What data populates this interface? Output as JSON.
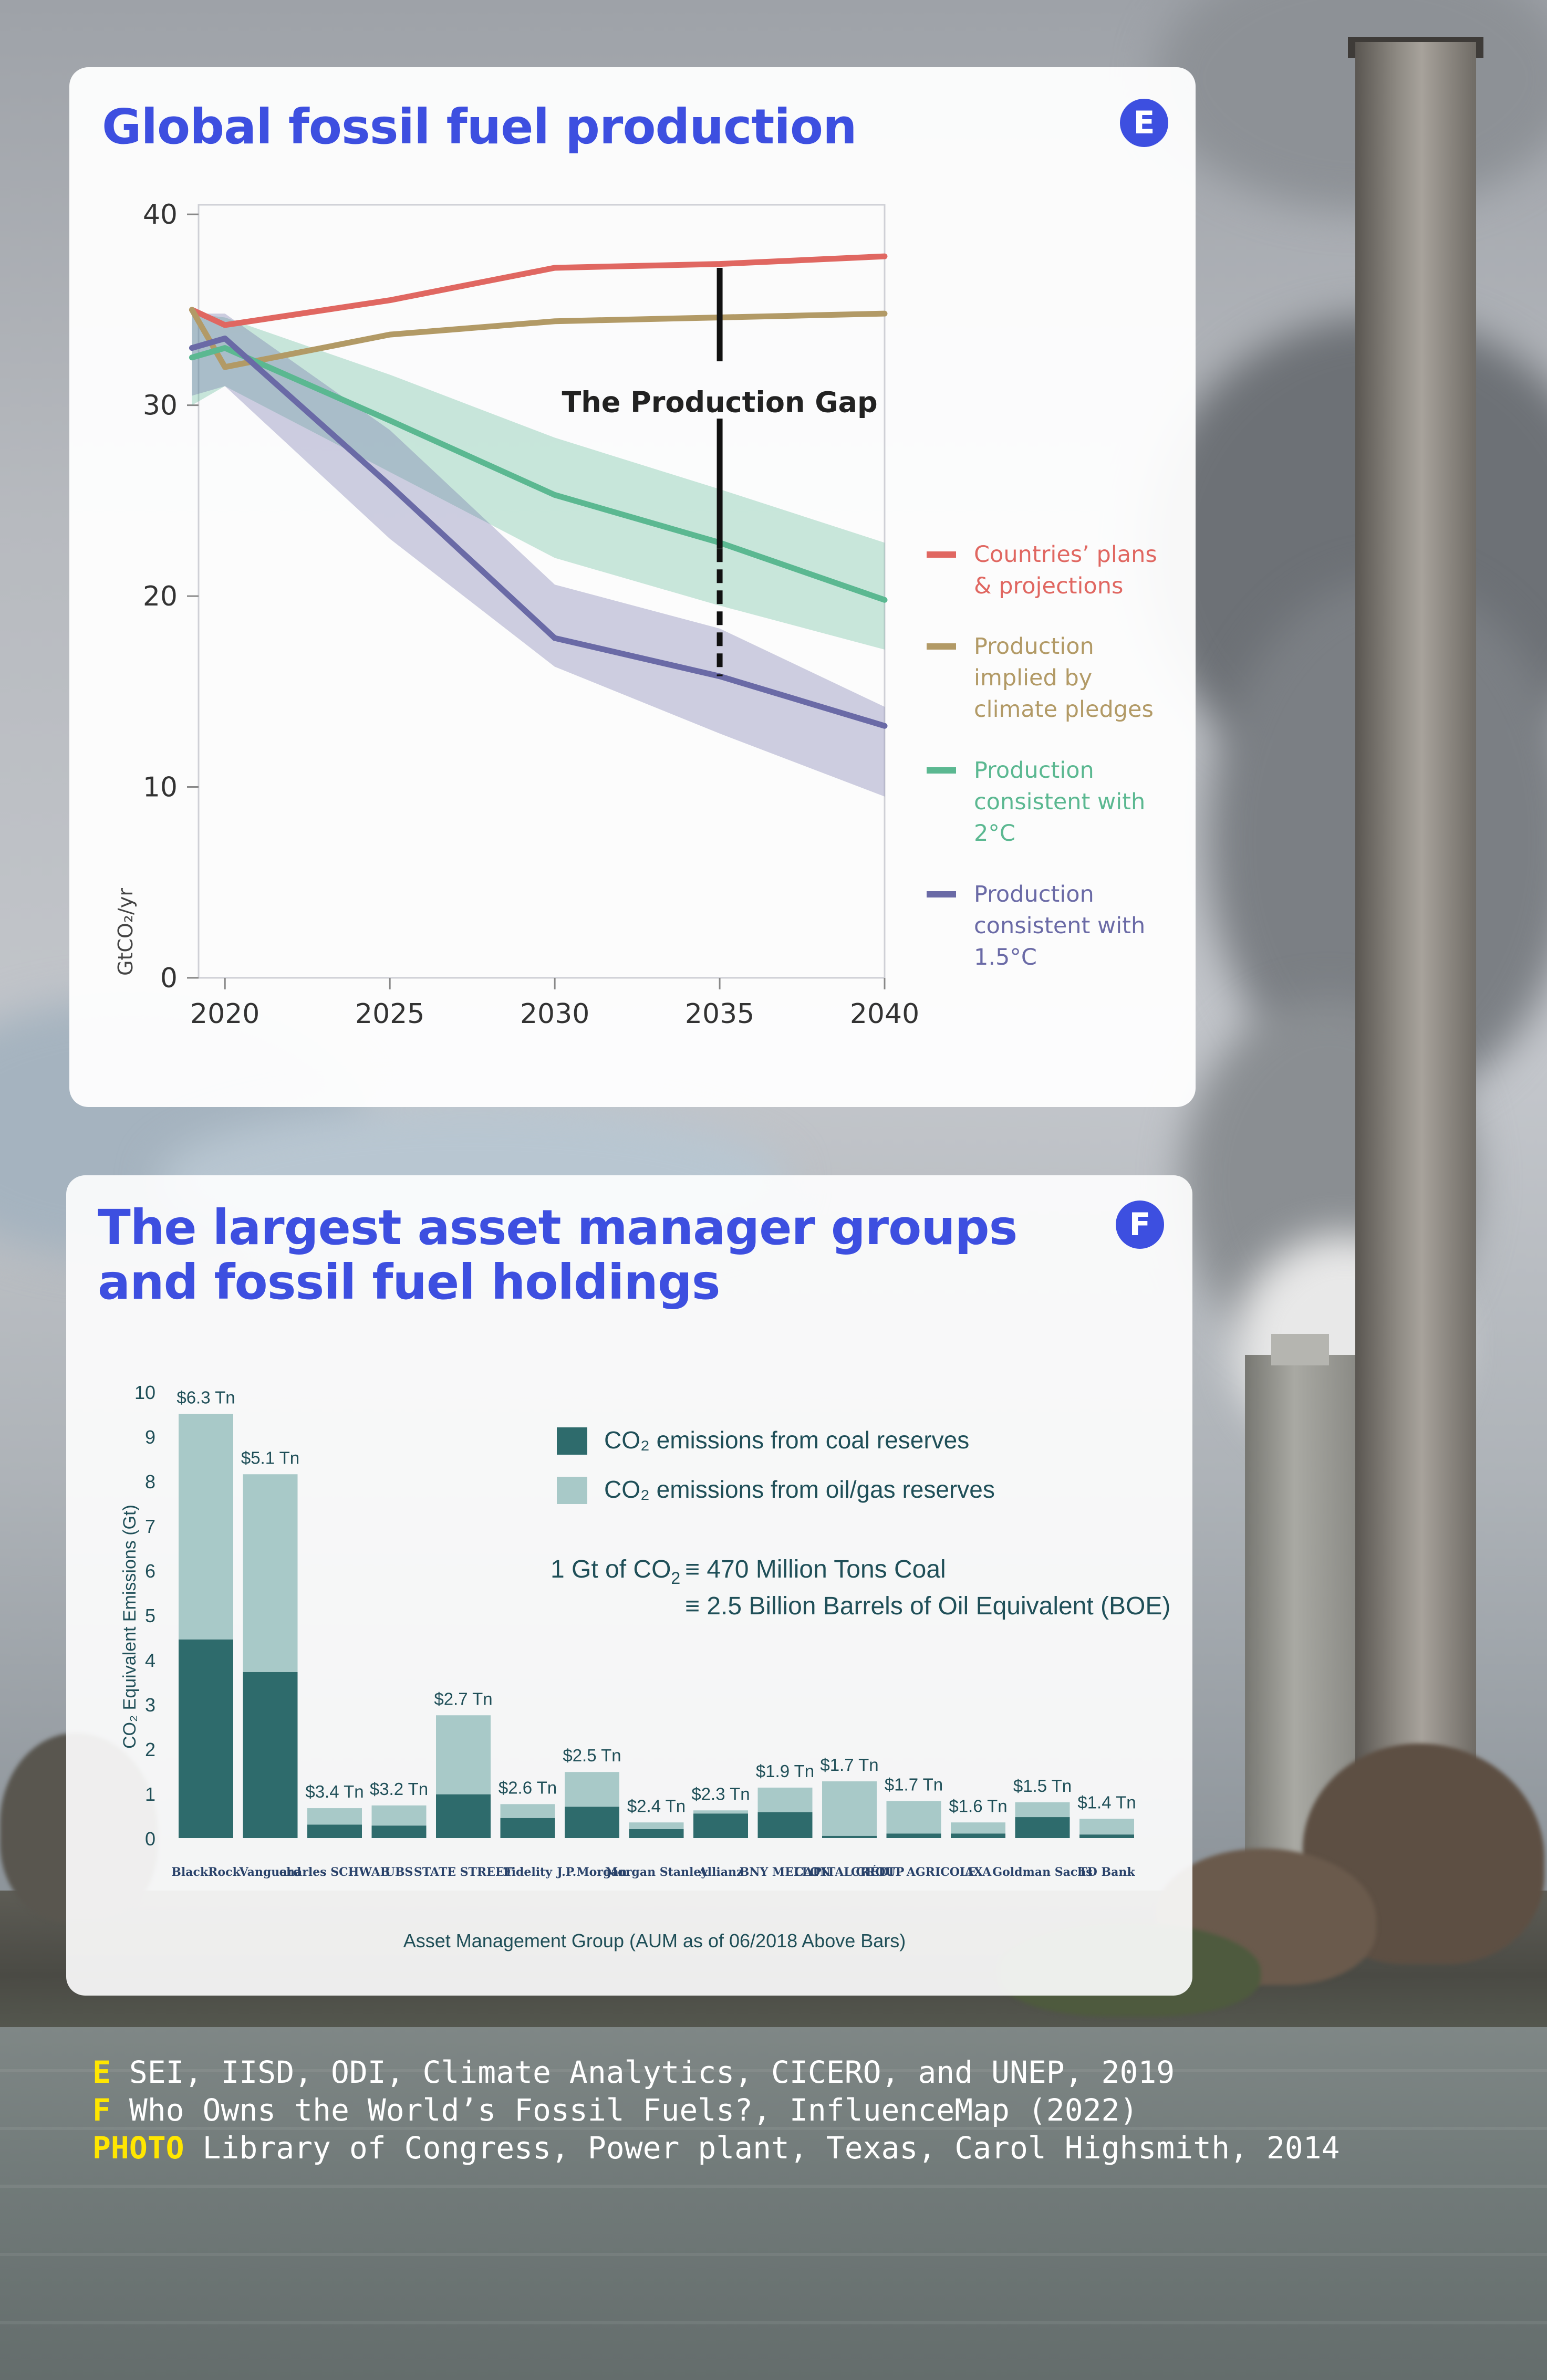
{
  "colors": {
    "accent": "#3d4fe0",
    "plans": "#e06761",
    "pledges": "#b29a66",
    "two_c": "#5bb891",
    "one_five_c": "#6a6aa6",
    "coal": "#2e6b6c",
    "oilgas": "#a8c9c8",
    "credit_tag": "#ffe600"
  },
  "panel_e": {
    "title": "Global fossil fuel production",
    "badge": "E"
  },
  "panel_f": {
    "title_line1": "The largest asset manager groups",
    "title_line2": "and fossil fuel holdings",
    "badge": "F",
    "conversion": {
      "lead": "1 Gt of  CO",
      "lead_sub": "2",
      "line1": "≡ 470 Million Tons Coal",
      "line2": "≡ 2.5 Billion Barrels of Oil Equivalent (BOE)"
    }
  },
  "chart_data": [
    {
      "type": "line",
      "ylabel": "GtCO₂/yr",
      "x_ticks": [
        "2020",
        "2025",
        "2030",
        "2035",
        "2040"
      ],
      "y_ticks": [
        "0",
        "10",
        "20",
        "30",
        "40"
      ],
      "xlim": [
        2019.2,
        2040
      ],
      "ylim": [
        0,
        40.5
      ],
      "annotation": "The Production Gap",
      "series": [
        {
          "name": "Countries’ plans & projections",
          "legend_lines": [
            "Countries’ plans",
            "& projections"
          ],
          "color": "#e06761",
          "x": [
            2019,
            2020,
            2025,
            2030,
            2035,
            2040
          ],
          "y": [
            35.0,
            34.2,
            35.5,
            37.2,
            37.4,
            37.8
          ]
        },
        {
          "name": "Production implied by climate pledges",
          "legend_lines": [
            "Production",
            "implied by",
            "climate pledges"
          ],
          "color": "#b29a66",
          "x": [
            2019,
            2020,
            2025,
            2030,
            2035,
            2040
          ],
          "y": [
            35.0,
            32.0,
            33.7,
            34.4,
            34.6,
            34.8
          ]
        },
        {
          "name": "Production consistent with 2°C",
          "legend_lines": [
            "Production",
            "consistent with",
            "2°C"
          ],
          "color": "#5bb891",
          "x": [
            2019,
            2020,
            2025,
            2030,
            2035,
            2040
          ],
          "y": [
            32.5,
            33.0,
            29.2,
            25.3,
            22.8,
            19.8
          ],
          "band_low": [
            30.0,
            31.0,
            26.5,
            22.0,
            19.5,
            17.2
          ],
          "band_high": [
            34.8,
            34.6,
            31.6,
            28.3,
            25.6,
            22.8
          ]
        },
        {
          "name": "Production consistent with 1.5°C",
          "legend_lines": [
            "Production",
            "consistent with",
            "1.5°C"
          ],
          "color": "#6a6aa6",
          "x": [
            2019,
            2020,
            2025,
            2030,
            2035,
            2040
          ],
          "y": [
            33.0,
            33.5,
            25.8,
            17.8,
            15.8,
            13.2
          ],
          "band_low": [
            30.5,
            31.0,
            23.0,
            16.3,
            12.8,
            9.5
          ],
          "band_high": [
            34.8,
            34.8,
            28.7,
            20.6,
            18.3,
            14.2
          ]
        }
      ]
    },
    {
      "type": "bar",
      "stacked": true,
      "ylabel": "CO₂ Equivalent Emissions (Gt)",
      "xlabel": "Asset Management Group (AUM as of 06/2018 Above Bars)",
      "ylim": [
        0,
        10
      ],
      "y_ticks": [
        "0",
        "1",
        "2",
        "3",
        "4",
        "5",
        "6",
        "7",
        "8",
        "9",
        "10"
      ],
      "categories": [
        "BlackRock",
        "Vanguard",
        "charles SCHWAB",
        "UBS",
        "STATE STREET",
        "Fidelity",
        "J.P.Morgan",
        "Morgan Stanley",
        "Allianz",
        "BNY MELLON",
        "CAPITAL GROUP",
        "CRÉDIT AGRICOLE",
        "AXA",
        "Goldman Sachs",
        "TD Bank"
      ],
      "aum_labels": [
        "$6.3 Tn",
        "$5.1 Tn",
        "$3.4 Tn",
        "$3.2 Tn",
        "$2.7 Tn",
        "$2.6 Tn",
        "$2.5 Tn",
        "$2.4 Tn",
        "$2.3 Tn",
        "$1.9 Tn",
        "$1.7 Tn",
        "$1.7 Tn",
        "$1.6 Tn",
        "$1.5 Tn",
        "$1.4 Tn"
      ],
      "series": [
        {
          "name": "CO₂ emissions from coal reserves",
          "color": "#2e6b6c",
          "values": [
            4.45,
            3.72,
            0.3,
            0.28,
            0.98,
            0.45,
            0.7,
            0.2,
            0.55,
            0.58,
            0.05,
            0.1,
            0.1,
            0.47,
            0.08
          ]
        },
        {
          "name": "CO₂ emissions from oil/gas reserves",
          "color": "#a8c9c8",
          "values": [
            5.05,
            4.43,
            0.37,
            0.45,
            1.77,
            0.31,
            0.78,
            0.15,
            0.07,
            0.55,
            1.22,
            0.73,
            0.25,
            0.33,
            0.35
          ]
        }
      ]
    }
  ],
  "credits": [
    {
      "tag": "E",
      "text": " SEI, IISD, ODI, Climate Analytics, CICERO, and UNEP, 2019"
    },
    {
      "tag": "F",
      "text": " Who Owns the World’s Fossil Fuels?, InfluenceMap (2022)"
    },
    {
      "tag": "PHOTO",
      "text": " Library of Congress, Power plant, Texas, Carol Highsmith, 2014"
    }
  ]
}
